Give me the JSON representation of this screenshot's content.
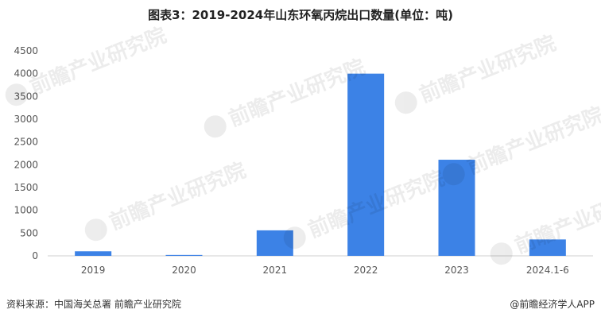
{
  "chart_data": {
    "type": "bar",
    "title": "图表3：2019-2024年山东环氧丙烷出口数量(单位：吨)",
    "categories": [
      "2019",
      "2020",
      "2021",
      "2022",
      "2023",
      "2024.1-6"
    ],
    "values": [
      100,
      20,
      560,
      4000,
      2110,
      360
    ],
    "ylim": [
      0,
      4500
    ],
    "yticks": [
      0,
      500,
      1000,
      1500,
      2000,
      2500,
      3000,
      3500,
      4000,
      4500
    ],
    "grid": false,
    "legend": "none",
    "bar_color": "#3c82e6"
  },
  "footer": {
    "source": "资料来源：中国海关总署 前瞻产业研究院",
    "brand": "@前瞻经济学人APP"
  },
  "watermark": {
    "text": "前瞻产业研究院"
  }
}
